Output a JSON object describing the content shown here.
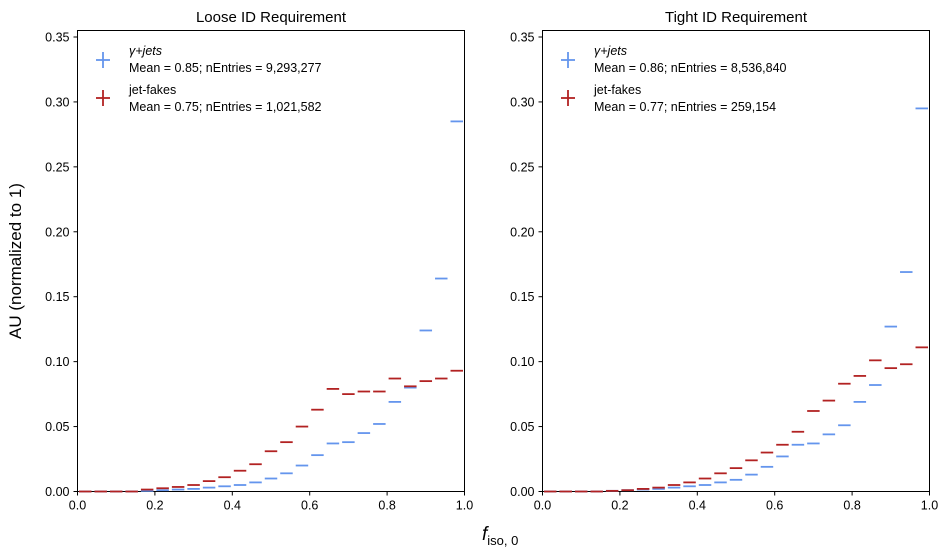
{
  "figure": {
    "ylabel": "AU (normalized to 1)",
    "xlabel_main": "f",
    "xlabel_sub": "iso, 0"
  },
  "colors": {
    "gamma_jets": "#6495ED",
    "jet_fakes": "#B22222"
  },
  "chart_data": [
    {
      "type": "histogram",
      "title": "Loose ID Requirement",
      "xlim": [
        0,
        1
      ],
      "ylim": [
        0,
        0.355
      ],
      "xticks": [
        "0.0",
        "0.2",
        "0.4",
        "0.6",
        "0.8",
        "1.0"
      ],
      "yticks": [
        "0.00",
        "0.05",
        "0.10",
        "0.15",
        "0.20",
        "0.25",
        "0.30",
        "0.35"
      ],
      "bin_width": 0.04,
      "legend_position": "upper left",
      "series": [
        {
          "name": "γ+jets",
          "stats": "Mean = 0.85; nEntries = 9,293,277",
          "color": "#6495ED",
          "bin_starts": [
            0.0,
            0.04,
            0.08,
            0.12,
            0.16,
            0.2,
            0.24,
            0.28,
            0.32,
            0.36,
            0.4,
            0.44,
            0.48,
            0.52,
            0.56,
            0.6,
            0.64,
            0.68,
            0.72,
            0.76,
            0.8,
            0.84,
            0.88,
            0.92,
            0.96
          ],
          "values": [
            0.0,
            0.0,
            0.0,
            0.0,
            0.0005,
            0.001,
            0.0015,
            0.002,
            0.003,
            0.004,
            0.005,
            0.007,
            0.01,
            0.014,
            0.02,
            0.028,
            0.037,
            0.038,
            0.045,
            0.052,
            0.069,
            0.08,
            0.124,
            0.164,
            0.285
          ]
        },
        {
          "name": "jet-fakes",
          "stats": "Mean = 0.75; nEntries =  1,021,582",
          "color": "#B22222",
          "bin_starts": [
            0.0,
            0.04,
            0.08,
            0.12,
            0.16,
            0.2,
            0.24,
            0.28,
            0.32,
            0.36,
            0.4,
            0.44,
            0.48,
            0.52,
            0.56,
            0.6,
            0.64,
            0.68,
            0.72,
            0.76,
            0.8,
            0.84,
            0.88,
            0.92,
            0.96
          ],
          "values": [
            0.0,
            0.0,
            0.0,
            0.0,
            0.0015,
            0.0025,
            0.0035,
            0.005,
            0.008,
            0.011,
            0.016,
            0.021,
            0.031,
            0.038,
            0.05,
            0.063,
            0.079,
            0.075,
            0.077,
            0.077,
            0.087,
            0.081,
            0.085,
            0.087,
            0.093
          ]
        }
      ]
    },
    {
      "type": "histogram",
      "title": "Tight ID Requirement",
      "xlim": [
        0,
        1
      ],
      "ylim": [
        0,
        0.355
      ],
      "xticks": [
        "0.0",
        "0.2",
        "0.4",
        "0.6",
        "0.8",
        "1.0"
      ],
      "yticks": [
        "0.00",
        "0.05",
        "0.10",
        "0.15",
        "0.20",
        "0.25",
        "0.30",
        "0.35"
      ],
      "bin_width": 0.04,
      "legend_position": "upper left",
      "series": [
        {
          "name": "γ+jets",
          "stats": "Mean = 0.86; nEntries = 8,536,840",
          "color": "#6495ED",
          "bin_starts": [
            0.0,
            0.04,
            0.08,
            0.12,
            0.16,
            0.2,
            0.24,
            0.28,
            0.32,
            0.36,
            0.4,
            0.44,
            0.48,
            0.52,
            0.56,
            0.6,
            0.64,
            0.68,
            0.72,
            0.76,
            0.8,
            0.84,
            0.88,
            0.92,
            0.96
          ],
          "values": [
            0.0,
            0.0,
            0.0,
            0.0,
            0.0005,
            0.001,
            0.0015,
            0.002,
            0.003,
            0.004,
            0.005,
            0.007,
            0.009,
            0.013,
            0.019,
            0.027,
            0.036,
            0.037,
            0.044,
            0.051,
            0.069,
            0.082,
            0.127,
            0.169,
            0.295
          ]
        },
        {
          "name": "jet-fakes",
          "stats": "Mean = 0.77; nEntries =  259,154",
          "color": "#B22222",
          "bin_starts": [
            0.0,
            0.04,
            0.08,
            0.12,
            0.16,
            0.2,
            0.24,
            0.28,
            0.32,
            0.36,
            0.4,
            0.44,
            0.48,
            0.52,
            0.56,
            0.6,
            0.64,
            0.68,
            0.72,
            0.76,
            0.8,
            0.84,
            0.88,
            0.92,
            0.96
          ],
          "values": [
            0.0,
            0.0,
            0.0,
            0.0,
            0.0005,
            0.001,
            0.002,
            0.003,
            0.005,
            0.007,
            0.01,
            0.014,
            0.018,
            0.024,
            0.03,
            0.036,
            0.046,
            0.062,
            0.07,
            0.083,
            0.089,
            0.101,
            0.095,
            0.098,
            0.111
          ]
        }
      ]
    }
  ]
}
